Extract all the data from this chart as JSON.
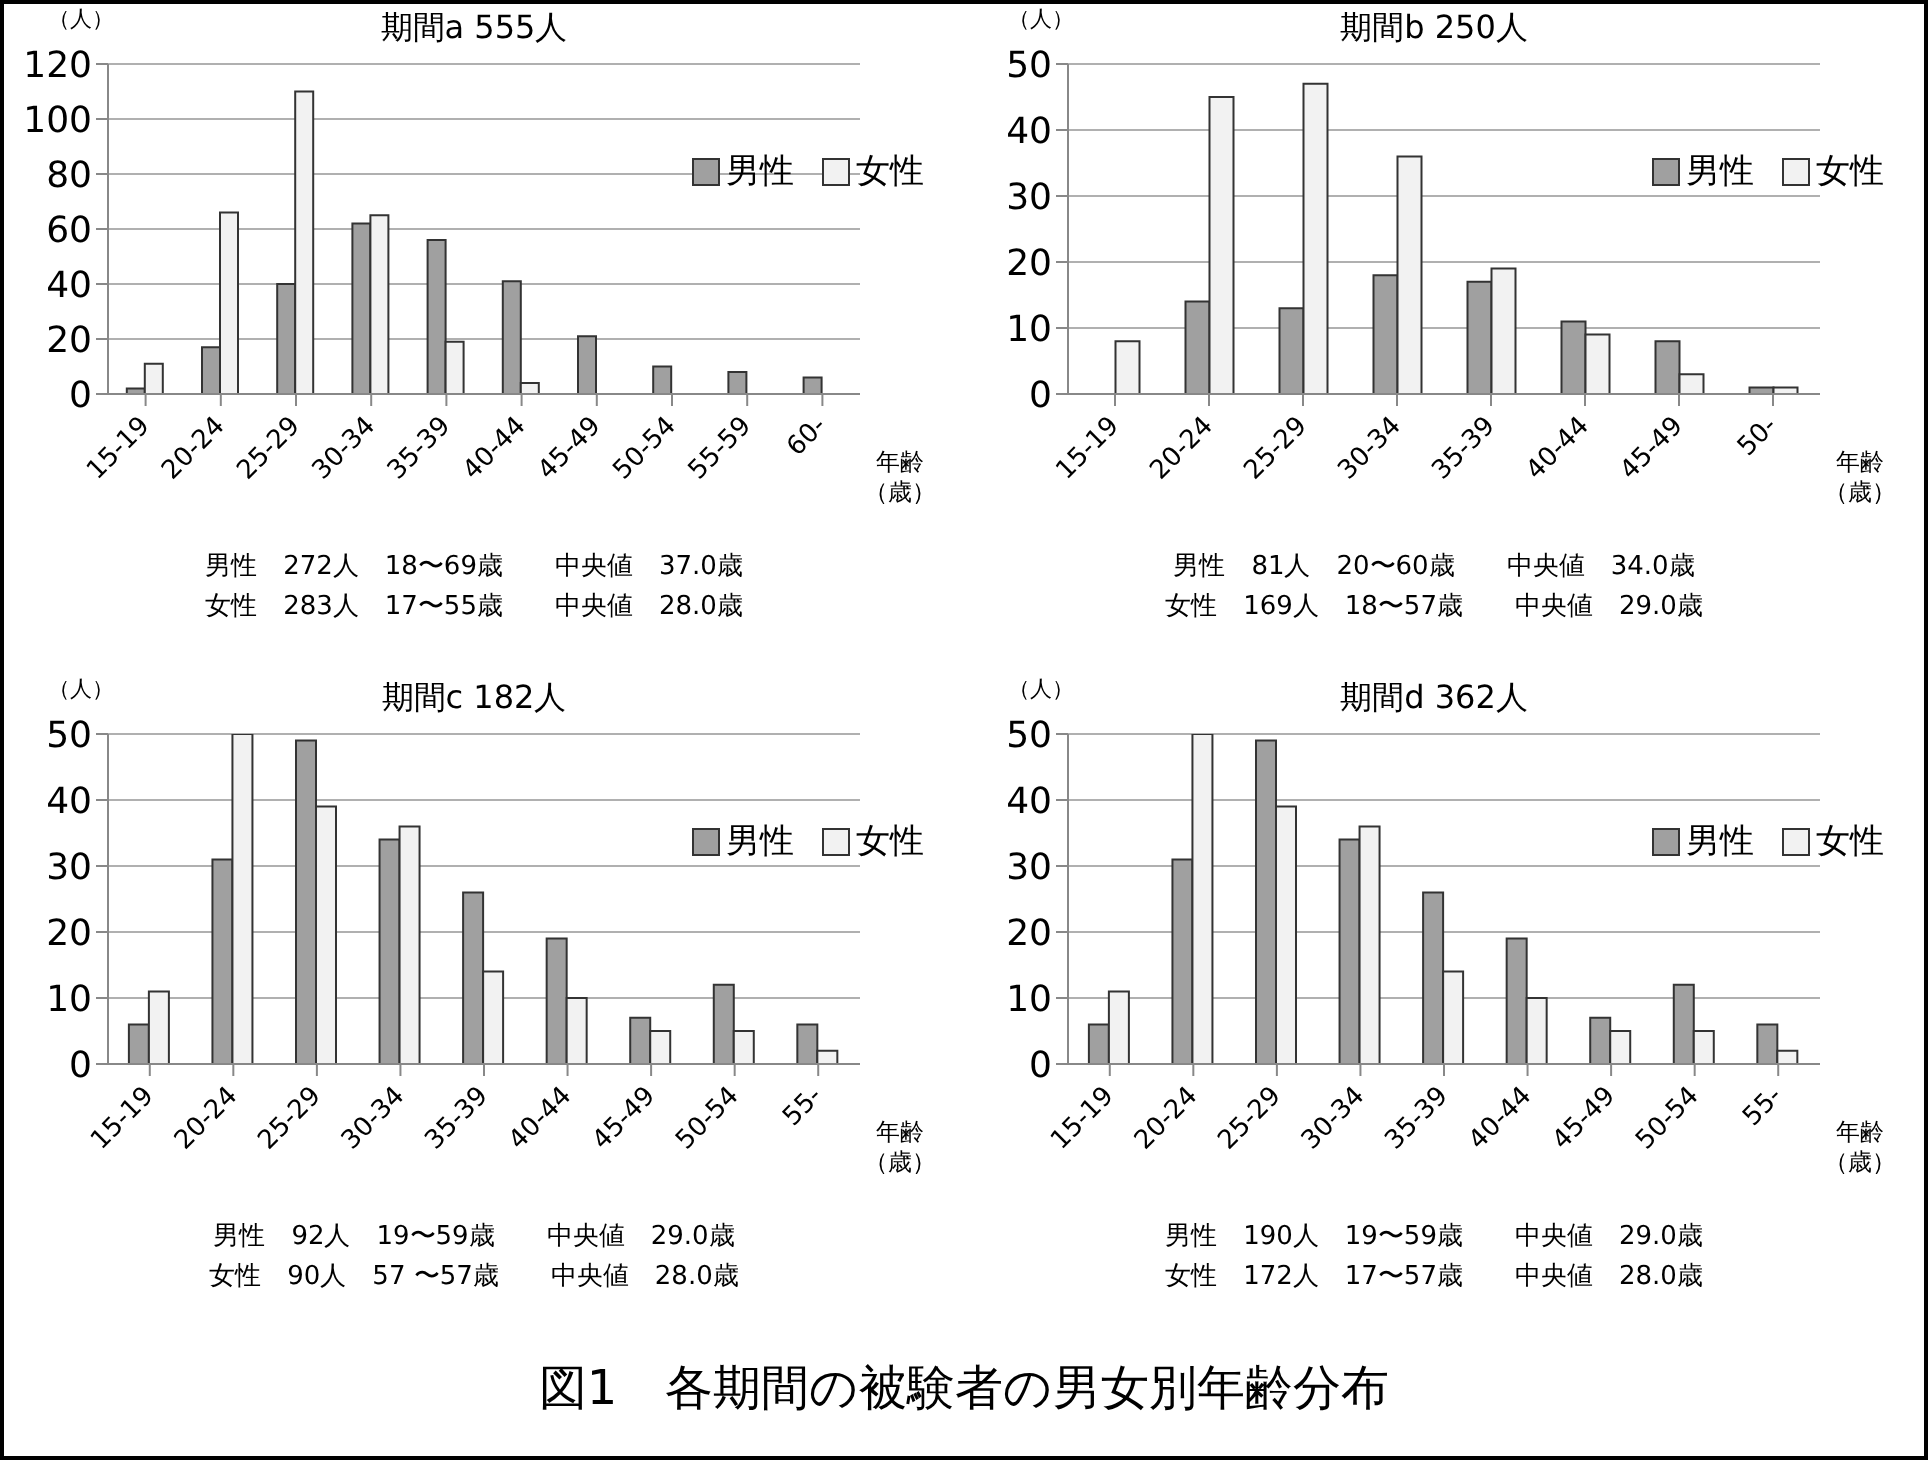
{
  "chart_data": [
    {
      "type": "bar",
      "title": "期間a 555人",
      "ylabel": "（人）",
      "xlabel": "年齢（歳）",
      "categories": [
        "15-19",
        "20-24",
        "25-29",
        "30-34",
        "35-39",
        "40-44",
        "45-49",
        "50-54",
        "55-59",
        "60-"
      ],
      "series": [
        {
          "name": "男性",
          "color": "#a0a0a0",
          "values": [
            2,
            17,
            40,
            62,
            56,
            41,
            21,
            10,
            8,
            6
          ]
        },
        {
          "name": "女性",
          "color": "#f2f2f2",
          "values": [
            11,
            66,
            110,
            65,
            19,
            4,
            0,
            0,
            0,
            0
          ]
        }
      ],
      "ylim": [
        0,
        120
      ],
      "yticks": [
        0,
        20,
        40,
        60,
        80,
        100,
        120
      ],
      "grid": "y",
      "legend": "top right",
      "annotations": [
        "男性　272人　18〜69歳　　中央値　37.0歳",
        "女性　283人　17〜55歳　　中央値　28.0歳"
      ]
    },
    {
      "type": "bar",
      "title": "期間b 250人",
      "ylabel": "（人）",
      "xlabel": "年齢（歳）",
      "categories": [
        "15-19",
        "20-24",
        "25-29",
        "30-34",
        "35-39",
        "40-44",
        "45-49",
        "50-"
      ],
      "series": [
        {
          "name": "男性",
          "color": "#a0a0a0",
          "values": [
            0,
            14,
            13,
            18,
            17,
            11,
            8,
            1
          ]
        },
        {
          "name": "女性",
          "color": "#f2f2f2",
          "values": [
            8,
            45,
            47,
            36,
            19,
            9,
            3,
            1
          ]
        }
      ],
      "ylim": [
        0,
        50
      ],
      "yticks": [
        0,
        10,
        20,
        30,
        40,
        50
      ],
      "grid": "y",
      "legend": "top right",
      "annotations": [
        "男性　81人　20〜60歳　　中央値　34.0歳",
        "女性　169人　18〜57歳　　中央値　29.0歳"
      ]
    },
    {
      "type": "bar",
      "title": "期間c 182人",
      "ylabel": "（人）",
      "xlabel": "年齢（歳）",
      "categories": [
        "15-19",
        "20-24",
        "25-29",
        "30-34",
        "35-39",
        "40-44",
        "45-49",
        "50-54",
        "55-"
      ],
      "series": [
        {
          "name": "男性",
          "color": "#a0a0a0",
          "values": [
            6,
            31,
            49,
            34,
            26,
            19,
            7,
            12,
            6
          ]
        },
        {
          "name": "女性",
          "color": "#f2f2f2",
          "values": [
            11,
            50,
            39,
            36,
            14,
            10,
            5,
            5,
            2
          ]
        }
      ],
      "ylim": [
        0,
        50
      ],
      "yticks": [
        0,
        10,
        20,
        30,
        40,
        50
      ],
      "grid": "y",
      "legend": "top right",
      "annotations": [
        "男性　92人　19〜59歳　　中央値　29.0歳",
        "女性　90人　57 〜57歳　　中央値　28.0歳"
      ]
    },
    {
      "type": "bar",
      "title": "期間d 362人",
      "ylabel": "（人）",
      "xlabel": "年齢（歳）",
      "categories": [
        "15-19",
        "20-24",
        "25-29",
        "30-34",
        "35-39",
        "40-44",
        "45-49",
        "50-54",
        "55-"
      ],
      "series": [
        {
          "name": "男性",
          "color": "#a0a0a0",
          "values": [
            6,
            31,
            49,
            34,
            26,
            19,
            7,
            12,
            6
          ]
        },
        {
          "name": "女性",
          "color": "#f2f2f2",
          "values": [
            11,
            50,
            39,
            36,
            14,
            10,
            5,
            5,
            2
          ]
        }
      ],
      "ylim": [
        0,
        50
      ],
      "yticks": [
        0,
        10,
        20,
        30,
        40,
        50
      ],
      "grid": "y",
      "legend": "top right",
      "annotations": [
        "男性　190人　19〜59歳　　中央値　29.0歳",
        "女性　172人　17〜57歳　　中央値　28.0歳"
      ]
    },
    {
      "type": "other",
      "title": "図1　各期間の被験者の男女別年齢分布"
    }
  ]
}
